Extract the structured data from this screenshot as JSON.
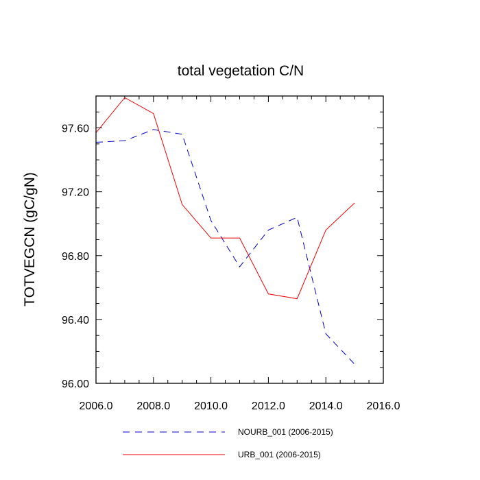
{
  "chart_data": {
    "type": "line",
    "title": "total vegetation C/N",
    "xlabel": "",
    "ylabel": "TOTVEGCN  (gC/gN)",
    "xlim": [
      2006.0,
      2016.0
    ],
    "ylim": [
      96.0,
      97.8
    ],
    "x_ticks": [
      2006.0,
      2008.0,
      2010.0,
      2012.0,
      2014.0,
      2016.0
    ],
    "x_tick_labels": [
      "2006.0",
      "2008.0",
      "2010.0",
      "2012.0",
      "2014.0",
      "2016.0"
    ],
    "y_ticks": [
      96.0,
      96.4,
      96.8,
      97.2,
      97.6
    ],
    "y_tick_labels": [
      "96.00",
      "96.40",
      "96.80",
      "97.20",
      "97.60"
    ],
    "x": [
      2006,
      2007,
      2008,
      2009,
      2010,
      2011,
      2012,
      2013,
      2014,
      2015
    ],
    "series": [
      {
        "name": "NOURB_001 (2006-2015)",
        "color": "#0000cc",
        "dash": "dashed",
        "values": [
          97.51,
          97.52,
          97.59,
          97.56,
          97.02,
          96.73,
          96.96,
          97.04,
          96.31,
          96.12
        ]
      },
      {
        "name": "URB_001 (2006-2015)",
        "color": "#ee0000",
        "dash": "solid",
        "values": [
          97.57,
          97.79,
          97.69,
          97.12,
          96.91,
          96.91,
          96.56,
          96.53,
          96.96,
          97.13
        ]
      }
    ],
    "legend": "bottom"
  }
}
